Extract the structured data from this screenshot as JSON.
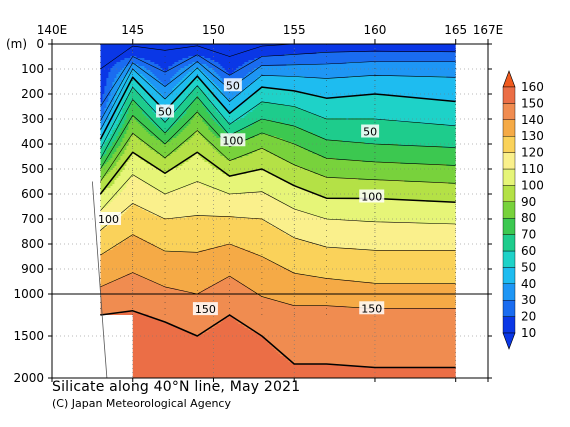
{
  "chart_data": {
    "type": "heatmap",
    "title": "Silicate along 40°N line, May 2021",
    "credit": "(C) Japan Meteorological Agency",
    "x_axis": {
      "range": [
        140,
        167
      ],
      "ticks": [
        {
          "value": 140,
          "label": "140E"
        },
        {
          "value": 145,
          "label": "145"
        },
        {
          "value": 150,
          "label": "150"
        },
        {
          "value": 155,
          "label": "155"
        },
        {
          "value": 160,
          "label": "160"
        },
        {
          "value": 165,
          "label": "165"
        },
        {
          "value": 167,
          "label": "167E"
        }
      ]
    },
    "y_axis": {
      "unit_label": "(m)",
      "upper_range": [
        0,
        1000
      ],
      "lower_range": [
        1000,
        2000
      ],
      "ticks": [
        {
          "value": 0,
          "label": "0"
        },
        {
          "value": 100,
          "label": "100"
        },
        {
          "value": 200,
          "label": "200"
        },
        {
          "value": 300,
          "label": "300"
        },
        {
          "value": 400,
          "label": "400"
        },
        {
          "value": 500,
          "label": "500"
        },
        {
          "value": 600,
          "label": "600"
        },
        {
          "value": 700,
          "label": "700"
        },
        {
          "value": 800,
          "label": "800"
        },
        {
          "value": 900,
          "label": "900"
        },
        {
          "value": 1000,
          "label": "1000"
        },
        {
          "value": 1500,
          "label": "1500"
        },
        {
          "value": 2000,
          "label": "2000"
        }
      ]
    },
    "colorbar": {
      "levels": [
        10,
        20,
        30,
        40,
        50,
        60,
        70,
        80,
        90,
        100,
        110,
        120,
        130,
        140,
        150,
        160
      ],
      "labels": [
        "10",
        "20",
        "30",
        "40",
        "50",
        "60",
        "70",
        "80",
        "90",
        "100",
        "110",
        "120",
        "130",
        "140",
        "150",
        "160"
      ],
      "colors": [
        "#0a37e6",
        "#1a6cf0",
        "#1e96f5",
        "#1ebcf0",
        "#1ed2c8",
        "#1ecc8c",
        "#3cc850",
        "#78d23c",
        "#b4e146",
        "#e6f578",
        "#faf08c",
        "#fad25a",
        "#f5aa46",
        "#f08c50",
        "#eb6e46",
        "#f05a1e"
      ]
    },
    "stations_lon": [
      143,
      145,
      147,
      149,
      151,
      153,
      155,
      157,
      160,
      165
    ],
    "depth_levels": [
      0,
      50,
      100,
      150,
      200,
      250,
      300,
      400,
      500,
      600,
      700,
      800,
      900,
      1000,
      1250,
      1500,
      2000
    ],
    "silicate_profiles": [
      [
        8,
        8,
        10,
        12,
        15,
        20,
        28,
        55,
        80,
        100,
        115,
        126,
        135,
        142,
        150,
        152,
        153
      ],
      [
        8,
        20,
        40,
        55,
        66,
        75,
        82,
        96,
        108,
        117,
        125,
        133,
        139,
        146,
        151,
        153,
        154
      ],
      [
        8,
        12,
        18,
        26,
        36,
        46,
        57,
        80,
        98,
        110,
        120,
        128,
        135,
        142,
        149,
        152,
        154
      ],
      [
        8,
        22,
        42,
        56,
        68,
        77,
        84,
        97,
        106,
        114,
        121,
        128,
        134,
        140,
        147,
        150,
        152
      ],
      [
        6,
        10,
        16,
        24,
        34,
        44,
        55,
        78,
        96,
        110,
        121,
        130,
        138,
        145,
        150,
        152,
        153
      ],
      [
        8,
        20,
        34,
        46,
        55,
        63,
        70,
        88,
        100,
        111,
        120,
        127,
        133,
        139,
        147,
        150,
        152
      ],
      [
        10,
        22,
        34,
        44,
        52,
        60,
        66,
        80,
        92,
        104,
        114,
        122,
        129,
        135,
        144,
        148,
        151
      ],
      [
        12,
        24,
        34,
        42,
        48,
        54,
        60,
        72,
        86,
        98,
        110,
        119,
        127,
        135,
        144,
        148,
        151
      ],
      [
        12,
        26,
        36,
        44,
        50,
        55,
        60,
        70,
        84,
        98,
        109,
        118,
        126,
        133,
        143,
        147,
        151
      ],
      [
        10,
        26,
        36,
        42,
        47,
        52,
        57,
        68,
        82,
        96,
        108,
        118,
        126,
        133,
        143,
        147,
        151
      ]
    ],
    "bottom_depth_m": [
      1250,
      2000,
      2000,
      2000,
      2000,
      2000,
      2000,
      2000,
      2000,
      2000
    ],
    "contour_labels": [
      {
        "lon": 147,
        "depth": 270,
        "text": "50"
      },
      {
        "lon": 151.2,
        "depth": 165,
        "text": "50"
      },
      {
        "lon": 159.7,
        "depth": 350,
        "text": "50"
      },
      {
        "lon": 151.2,
        "depth": 385,
        "text": "100"
      },
      {
        "lon": 159.8,
        "depth": 610,
        "text": "100"
      },
      {
        "lon": 143.5,
        "depth": 700,
        "text": "100"
      },
      {
        "lon": 149.5,
        "depth": 1180,
        "text": "150"
      },
      {
        "lon": 159.8,
        "depth": 1170,
        "text": "150"
      }
    ]
  }
}
